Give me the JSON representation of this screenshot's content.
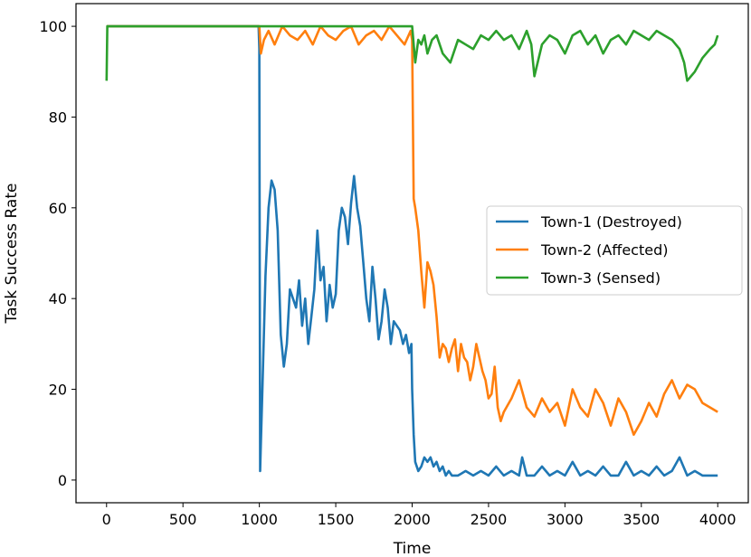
{
  "chart_data": {
    "type": "line",
    "xlabel": "Time",
    "ylabel": "Task Success Rate",
    "xlim": [
      -200,
      4200
    ],
    "ylim": [
      -5,
      105
    ],
    "xticks": [
      0,
      500,
      1000,
      1500,
      2000,
      2500,
      3000,
      3500,
      4000
    ],
    "yticks": [
      0,
      20,
      40,
      60,
      80,
      100
    ],
    "legend_position": "center-right",
    "grid": false,
    "series": [
      {
        "name": "Town-1 (Destroyed)",
        "color": "#1f77b4",
        "x": [
          0,
          995,
          1000,
          1005,
          1010,
          1020,
          1040,
          1060,
          1080,
          1100,
          1120,
          1140,
          1160,
          1180,
          1200,
          1220,
          1240,
          1260,
          1280,
          1300,
          1320,
          1340,
          1360,
          1380,
          1400,
          1420,
          1440,
          1460,
          1480,
          1500,
          1520,
          1540,
          1560,
          1580,
          1600,
          1620,
          1640,
          1660,
          1680,
          1700,
          1720,
          1740,
          1760,
          1780,
          1800,
          1820,
          1840,
          1860,
          1880,
          1900,
          1920,
          1940,
          1960,
          1980,
          1995,
          2000,
          2010,
          2020,
          2040,
          2060,
          2080,
          2100,
          2120,
          2140,
          2160,
          2180,
          2200,
          2220,
          2240,
          2260,
          2300,
          2350,
          2400,
          2450,
          2500,
          2550,
          2600,
          2650,
          2700,
          2720,
          2750,
          2800,
          2850,
          2900,
          2950,
          3000,
          3050,
          3100,
          3150,
          3200,
          3250,
          3300,
          3350,
          3400,
          3450,
          3500,
          3550,
          3600,
          3650,
          3700,
          3750,
          3800,
          3850,
          3900,
          3950,
          4000
        ],
        "y": [
          100,
          100,
          95,
          2,
          8,
          20,
          45,
          60,
          66,
          64,
          55,
          32,
          25,
          30,
          42,
          40,
          38,
          44,
          34,
          40,
          30,
          36,
          42,
          55,
          44,
          47,
          35,
          43,
          38,
          41,
          55,
          60,
          58,
          52,
          61,
          67,
          60,
          56,
          48,
          40,
          35,
          47,
          40,
          31,
          35,
          42,
          38,
          30,
          35,
          34,
          33,
          30,
          32,
          28,
          30,
          20,
          10,
          4,
          2,
          3,
          5,
          4,
          5,
          3,
          4,
          2,
          3,
          1,
          2,
          1,
          1,
          2,
          1,
          2,
          1,
          3,
          1,
          2,
          1,
          5,
          1,
          1,
          3,
          1,
          2,
          1,
          4,
          1,
          2,
          1,
          3,
          1,
          1,
          4,
          1,
          2,
          1,
          3,
          1,
          2,
          5,
          1,
          2,
          1,
          1,
          1
        ]
      },
      {
        "name": "Town-2 (Affected)",
        "color": "#ff7f0e",
        "x": [
          0,
          1000,
          1010,
          1030,
          1060,
          1100,
          1150,
          1200,
          1250,
          1300,
          1350,
          1400,
          1450,
          1500,
          1550,
          1600,
          1650,
          1700,
          1750,
          1800,
          1850,
          1900,
          1950,
          1990,
          2000,
          2005,
          2010,
          2020,
          2040,
          2060,
          2080,
          2100,
          2120,
          2140,
          2160,
          2180,
          2200,
          2220,
          2240,
          2260,
          2280,
          2300,
          2320,
          2340,
          2360,
          2380,
          2400,
          2420,
          2440,
          2460,
          2480,
          2500,
          2520,
          2540,
          2560,
          2580,
          2600,
          2650,
          2700,
          2750,
          2800,
          2850,
          2900,
          2950,
          3000,
          3050,
          3100,
          3150,
          3200,
          3250,
          3300,
          3350,
          3400,
          3450,
          3500,
          3550,
          3600,
          3650,
          3700,
          3750,
          3800,
          3850,
          3900,
          3950,
          4000
        ],
        "y": [
          100,
          100,
          94,
          97,
          99,
          96,
          100,
          98,
          97,
          99,
          96,
          100,
          98,
          97,
          99,
          100,
          96,
          98,
          99,
          97,
          100,
          98,
          96,
          99,
          97,
          80,
          62,
          60,
          55,
          46,
          38,
          48,
          46,
          43,
          36,
          27,
          30,
          29,
          26,
          29,
          31,
          24,
          30,
          27,
          26,
          22,
          25,
          30,
          27,
          24,
          22,
          18,
          19,
          25,
          16,
          13,
          15,
          18,
          22,
          16,
          14,
          18,
          15,
          17,
          12,
          20,
          16,
          14,
          20,
          17,
          12,
          18,
          15,
          10,
          13,
          17,
          14,
          19,
          22,
          18,
          21,
          20,
          17,
          16,
          15
        ]
      },
      {
        "name": "Town-3 (Sensed)",
        "color": "#2ca02c",
        "x": [
          0,
          5,
          10,
          1000,
          1500,
          1990,
          2000,
          2020,
          2040,
          2060,
          2080,
          2100,
          2130,
          2160,
          2200,
          2250,
          2300,
          2350,
          2400,
          2450,
          2500,
          2550,
          2600,
          2650,
          2700,
          2750,
          2780,
          2800,
          2850,
          2900,
          2950,
          3000,
          3050,
          3100,
          3150,
          3200,
          3250,
          3300,
          3350,
          3400,
          3450,
          3500,
          3550,
          3600,
          3650,
          3700,
          3750,
          3780,
          3800,
          3850,
          3900,
          3950,
          3980,
          4000
        ],
        "y": [
          88,
          100,
          100,
          100,
          100,
          100,
          100,
          92,
          97,
          96,
          98,
          94,
          97,
          98,
          94,
          92,
          97,
          96,
          95,
          98,
          97,
          99,
          97,
          98,
          95,
          99,
          96,
          89,
          96,
          98,
          97,
          94,
          98,
          99,
          96,
          98,
          94,
          97,
          98,
          96,
          99,
          98,
          97,
          99,
          98,
          97,
          95,
          92,
          88,
          90,
          93,
          95,
          96,
          98
        ]
      }
    ]
  }
}
